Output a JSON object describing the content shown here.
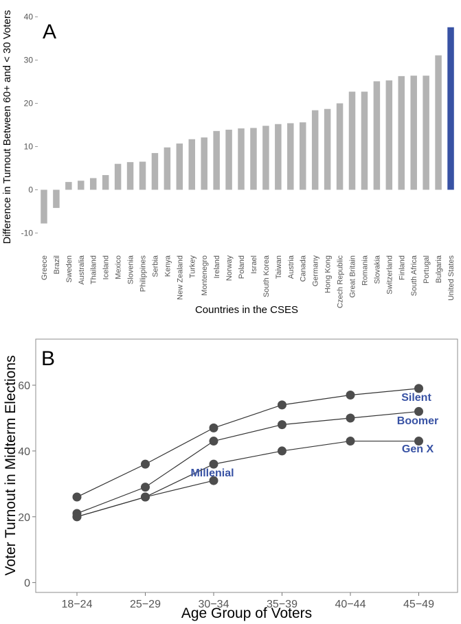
{
  "colors": {
    "bar": "#b3b3b3",
    "highlight": "#3852a4",
    "point": "#4d4d4d",
    "line": "#333333",
    "label": "#3852a4",
    "frame": "#8c8c8c"
  },
  "chart_data": [
    {
      "panel": "A",
      "type": "bar",
      "xlabel": "Countries in the CSES",
      "ylabel": "Difference in Turnout Between 60+ and < 30 Voters",
      "ylim": [
        -12,
        42
      ],
      "yticks": [
        -10,
        0,
        10,
        20,
        30,
        40
      ],
      "highlight": "United States",
      "categories": [
        "Greece",
        "Brazil",
        "Sweden",
        "Australia",
        "Thailand",
        "Iceland",
        "Mexico",
        "Slovenia",
        "Philippines",
        "Serbia",
        "Kenya",
        "New Zealand",
        "Turkey",
        "Montenegro",
        "Ireland",
        "Norway",
        "Poland",
        "Israel",
        "South Korea",
        "Taiwan",
        "Austria",
        "Canada",
        "Germany",
        "Hong Kong",
        "Czech Republic",
        "Great Britain",
        "Romania",
        "Slovakia",
        "Switzerland",
        "Finland",
        "South Africa",
        "Portugal",
        "Bulgaria",
        "United States"
      ],
      "values": [
        -7.8,
        -4.2,
        1.8,
        2.1,
        2.7,
        3.4,
        6.0,
        6.4,
        6.5,
        8.5,
        9.8,
        10.7,
        11.7,
        12.1,
        13.6,
        13.9,
        14.2,
        14.3,
        14.8,
        15.2,
        15.4,
        15.6,
        18.4,
        18.7,
        20.0,
        22.7,
        22.7,
        25.1,
        25.3,
        26.3,
        26.4,
        26.4,
        31.1,
        37.6
      ]
    },
    {
      "panel": "B",
      "type": "line",
      "xlabel": "Age Group of Voters",
      "ylabel": "Voter Turnout in Midterm Elections",
      "ylim": [
        -3,
        74
      ],
      "yticks": [
        0,
        20,
        40,
        60
      ],
      "categories": [
        "18−24",
        "25−29",
        "30−34",
        "35−39",
        "40−44",
        "45−49"
      ],
      "series": [
        {
          "name": "Silent",
          "values": [
            26,
            36,
            47,
            54,
            57,
            59
          ]
        },
        {
          "name": "Boomer",
          "values": [
            21,
            29,
            43,
            48,
            50,
            52
          ]
        },
        {
          "name": "Gen X",
          "values": [
            20,
            26,
            36,
            40,
            43,
            43
          ]
        },
        {
          "name": "Millenial",
          "values": [
            20,
            26,
            31,
            null,
            null,
            null
          ]
        }
      ]
    }
  ]
}
